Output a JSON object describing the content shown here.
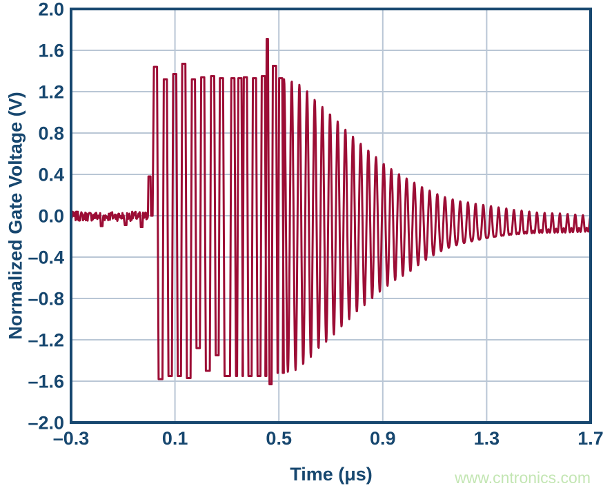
{
  "watermark": {
    "text": "www.cntronics.com",
    "color": "#c3e6b3"
  },
  "chart_data": {
    "type": "line",
    "title": "",
    "xlabel": "Time (μs)",
    "ylabel": "Normalized Gate Voltage (V)",
    "xlim": [
      -0.3,
      1.7
    ],
    "ylim": [
      -2.0,
      2.0
    ],
    "grid": true,
    "legend": "none",
    "colors": {
      "trace": "#9c0d35",
      "axis": "#17476f",
      "grid": "#b9c6d5",
      "tick_text": "#17476f"
    },
    "xticks": {
      "values": [
        -0.3,
        0.1,
        0.5,
        0.9,
        1.3,
        1.7
      ],
      "labels": [
        "–0.3",
        "0.1",
        "0.5",
        "0.9",
        "1.3",
        "1.7"
      ]
    },
    "yticks": {
      "values": [
        2.0,
        1.6,
        1.2,
        0.8,
        0.4,
        0.0,
        -0.4,
        -0.8,
        -1.2,
        -1.6,
        -2.0
      ],
      "labels": [
        "2.0",
        "1.6",
        "1.2",
        "0.8",
        "0.4",
        "0.0",
        "–0.4",
        "–0.8",
        "–1.2",
        "–1.6",
        "–2.0"
      ]
    },
    "signal": {
      "baseline": {
        "t_start": -0.3,
        "t_end": -0.004,
        "level": -0.005,
        "noise": 0.045,
        "notches": [
          {
            "t": -0.183,
            "v": -0.1
          },
          {
            "t": -0.09,
            "v": -0.09
          },
          {
            "t": -0.029,
            "v": -0.11
          }
        ]
      },
      "pre_pulse": {
        "t": -0.004,
        "v": 0.38,
        "width": 0.01
      },
      "burst": {
        "rise": 0.005,
        "fall": 0.006,
        "top_width": 0.009,
        "cycles": [
          {
            "t": 0.022,
            "top": 1.44,
            "bot": -1.58
          },
          {
            "t": 0.06,
            "top": 1.32,
            "bot": -1.55
          },
          {
            "t": 0.096,
            "top": 1.37,
            "bot": -1.55
          },
          {
            "t": 0.131,
            "top": 1.47,
            "bot": -1.57
          },
          {
            "t": 0.168,
            "top": 1.32,
            "bot": -1.28
          },
          {
            "t": 0.204,
            "top": 1.34,
            "bot": -1.5
          },
          {
            "t": 0.242,
            "top": 1.35,
            "bot": -1.35
          },
          {
            "t": 0.276,
            "top": 1.33,
            "bot": -1.55
          },
          {
            "t": 0.32,
            "top": 1.33,
            "bot": -1.55
          },
          {
            "t": 0.347,
            "top": 1.33,
            "bot": -1.55
          },
          {
            "t": 0.368,
            "top": 1.34,
            "bot": -1.55
          },
          {
            "t": 0.403,
            "top": 1.33,
            "bot": -1.55
          },
          {
            "t": 0.437,
            "top": 1.35,
            "bot": -1.55
          },
          {
            "t": 0.456,
            "top": 1.71,
            "bot": -1.63,
            "w": 0.002
          },
          {
            "t": 0.48,
            "top": 1.45,
            "bot": -1.52
          },
          {
            "t": 0.504,
            "top": 1.33,
            "bot": -1.52
          }
        ]
      },
      "decay": {
        "t_start": 0.52,
        "t_end": 1.7,
        "period": 0.0295,
        "center": -0.1,
        "envelope": [
          [
            0.52,
            1.42
          ],
          [
            0.56,
            1.4
          ],
          [
            0.6,
            1.33
          ],
          [
            0.65,
            1.19
          ],
          [
            0.7,
            1.08
          ],
          [
            0.75,
            0.95
          ],
          [
            0.8,
            0.83
          ],
          [
            0.85,
            0.72
          ],
          [
            0.9,
            0.61
          ],
          [
            0.95,
            0.52
          ],
          [
            1.0,
            0.45
          ],
          [
            1.05,
            0.38
          ],
          [
            1.1,
            0.32
          ],
          [
            1.15,
            0.27
          ],
          [
            1.2,
            0.24
          ],
          [
            1.3,
            0.2
          ],
          [
            1.4,
            0.16
          ],
          [
            1.5,
            0.13
          ],
          [
            1.6,
            0.12
          ],
          [
            1.7,
            0.1
          ]
        ]
      }
    }
  }
}
